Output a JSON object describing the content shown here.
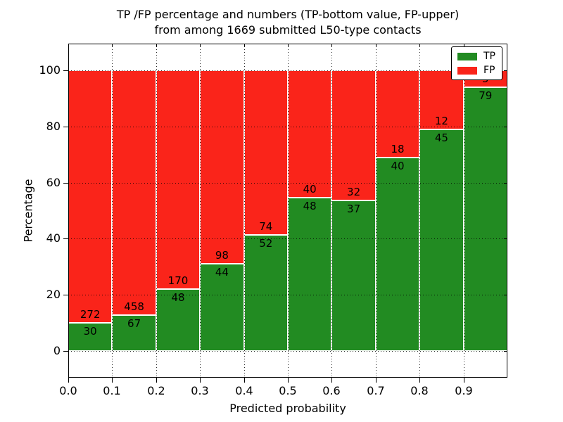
{
  "title": {
    "line1": "TP /FP percentage and numbers (TP-bottom value, FP-upper)",
    "line2": "from among 1669 submitted L50-type contacts"
  },
  "chart_data": {
    "type": "bar",
    "stacked": true,
    "normalized": "percent",
    "total_submitted": 1669,
    "categories": [
      "0.0-0.1",
      "0.1-0.2",
      "0.2-0.3",
      "0.3-0.4",
      "0.4-0.5",
      "0.5-0.6",
      "0.6-0.7",
      "0.7-0.8",
      "0.8-0.9",
      "0.9-1.0"
    ],
    "series": [
      {
        "name": "TP",
        "color": "#228b22",
        "counts": [
          30,
          67,
          48,
          44,
          52,
          48,
          37,
          40,
          45,
          79
        ],
        "pct": [
          9.93,
          12.76,
          22.02,
          30.99,
          41.27,
          54.55,
          53.62,
          68.97,
          78.95,
          94.05
        ]
      },
      {
        "name": "FP",
        "color": "#fa241a",
        "counts": [
          272,
          458,
          170,
          98,
          74,
          40,
          32,
          18,
          12,
          5
        ],
        "pct": [
          90.07,
          87.24,
          77.98,
          69.01,
          58.73,
          45.45,
          46.38,
          31.03,
          21.05,
          5.95
        ]
      }
    ],
    "xlabel": "Predicted probability",
    "ylabel": "Percentage",
    "xlim": [
      0.0,
      1.0
    ],
    "ylim": [
      -9.5,
      109.5
    ],
    "xticks": [
      0.0,
      0.1,
      0.2,
      0.3,
      0.4,
      0.5,
      0.6,
      0.7,
      0.8,
      0.9
    ],
    "xtick_labels": [
      "0.0",
      "0.1",
      "0.2",
      "0.3",
      "0.4",
      "0.5",
      "0.6",
      "0.7",
      "0.8",
      "0.9"
    ],
    "yticks": [
      0,
      20,
      40,
      60,
      80,
      100
    ],
    "ytick_labels": [
      "0",
      "20",
      "40",
      "60",
      "80",
      "100"
    ],
    "grid": true,
    "legend": {
      "position": "upper right",
      "entries": [
        "TP",
        "FP"
      ]
    }
  }
}
